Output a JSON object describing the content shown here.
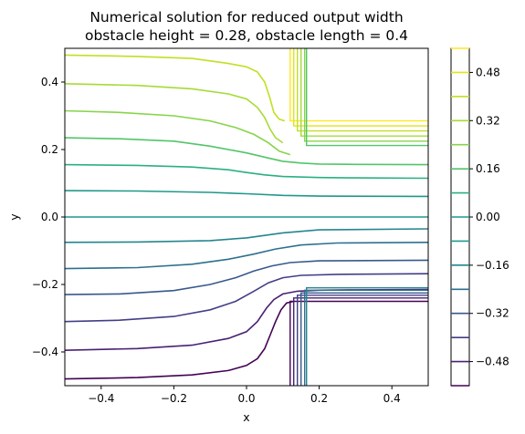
{
  "chart_data": {
    "type": "contour",
    "title_lines": [
      "Numerical solution for reduced output width",
      "obstacle height = 0.28, obstacle length = 0.4"
    ],
    "xlabel": "x",
    "ylabel": "y",
    "xlim": [
      -0.5,
      0.5
    ],
    "ylim": [
      -0.5,
      0.5
    ],
    "xticks": [
      -0.4,
      -0.2,
      0.0,
      0.2,
      0.4
    ],
    "xtick_labels": [
      "−0.4",
      "−0.2",
      "0.0",
      "0.2",
      "0.4"
    ],
    "yticks": [
      -0.4,
      -0.2,
      0.0,
      0.2,
      0.4
    ],
    "ytick_labels": [
      "−0.4",
      "−0.2",
      "0.0",
      "0.2",
      "0.4"
    ],
    "colormap": "viridis",
    "colorbar": {
      "range": [
        -0.56,
        0.56
      ],
      "ticks": [
        -0.48,
        -0.32,
        -0.16,
        0.0,
        0.16,
        0.32,
        0.48
      ],
      "tick_labels": [
        "−0.48",
        "−0.32",
        "−0.16",
        "0.00",
        "0.16",
        "0.32",
        "0.48"
      ]
    },
    "levels": [
      {
        "value": -0.56,
        "color": "#440154"
      },
      {
        "value": -0.48,
        "color": "#482173"
      },
      {
        "value": -0.4,
        "color": "#433e85"
      },
      {
        "value": -0.32,
        "color": "#38588c"
      },
      {
        "value": -0.24,
        "color": "#2d708e"
      },
      {
        "value": -0.16,
        "color": "#25858e"
      },
      {
        "value": -0.08,
        "color": "#1e9b8a"
      },
      {
        "value": 0.0,
        "color": "#1f988b"
      },
      {
        "value": 0.08,
        "color": "#2ab07f"
      },
      {
        "value": 0.16,
        "color": "#52c569"
      },
      {
        "value": 0.24,
        "color": "#86d549"
      },
      {
        "value": 0.32,
        "color": "#a5db36"
      },
      {
        "value": 0.4,
        "color": "#c2df23"
      },
      {
        "value": 0.48,
        "color": "#e2e418"
      },
      {
        "value": 0.56,
        "color": "#fde725"
      }
    ],
    "contours": [
      {
        "level": 0.48,
        "color": "#c2df23",
        "points": [
          [
            -0.5,
            0.48
          ],
          [
            -0.3,
            0.476
          ],
          [
            -0.15,
            0.47
          ],
          [
            -0.05,
            0.455
          ],
          [
            0.0,
            0.445
          ],
          [
            0.03,
            0.43
          ],
          [
            0.05,
            0.4
          ],
          [
            0.065,
            0.35
          ],
          [
            0.075,
            0.31
          ],
          [
            0.09,
            0.29
          ],
          [
            0.105,
            0.285
          ]
        ]
      },
      {
        "level": 0.4,
        "color": "#a5db36",
        "points": [
          [
            -0.5,
            0.395
          ],
          [
            -0.3,
            0.39
          ],
          [
            -0.15,
            0.38
          ],
          [
            -0.05,
            0.365
          ],
          [
            0.0,
            0.35
          ],
          [
            0.03,
            0.325
          ],
          [
            0.05,
            0.295
          ],
          [
            0.065,
            0.26
          ],
          [
            0.08,
            0.235
          ],
          [
            0.1,
            0.22
          ]
        ]
      },
      {
        "level": 0.32,
        "color": "#86d549",
        "points": [
          [
            -0.5,
            0.315
          ],
          [
            -0.35,
            0.31
          ],
          [
            -0.2,
            0.3
          ],
          [
            -0.1,
            0.285
          ],
          [
            -0.03,
            0.265
          ],
          [
            0.02,
            0.245
          ],
          [
            0.06,
            0.22
          ],
          [
            0.09,
            0.195
          ],
          [
            0.12,
            0.185
          ]
        ]
      },
      {
        "level": 0.24,
        "color": "#52c569",
        "points": [
          [
            -0.5,
            0.235
          ],
          [
            -0.35,
            0.232
          ],
          [
            -0.2,
            0.225
          ],
          [
            -0.1,
            0.21
          ],
          [
            0.0,
            0.19
          ],
          [
            0.06,
            0.175
          ],
          [
            0.1,
            0.165
          ],
          [
            0.15,
            0.16
          ],
          [
            0.2,
            0.157
          ],
          [
            0.3,
            0.156
          ],
          [
            0.5,
            0.155
          ]
        ]
      },
      {
        "level": 0.16,
        "color": "#2ab07f",
        "points": [
          [
            -0.5,
            0.155
          ],
          [
            -0.3,
            0.153
          ],
          [
            -0.15,
            0.148
          ],
          [
            -0.05,
            0.14
          ],
          [
            0.0,
            0.132
          ],
          [
            0.05,
            0.125
          ],
          [
            0.1,
            0.12
          ],
          [
            0.2,
            0.117
          ],
          [
            0.3,
            0.116
          ],
          [
            0.5,
            0.115
          ]
        ]
      },
      {
        "level": 0.08,
        "color": "#1f988b",
        "points": [
          [
            -0.5,
            0.078
          ],
          [
            -0.3,
            0.077
          ],
          [
            -0.1,
            0.073
          ],
          [
            0.0,
            0.069
          ],
          [
            0.1,
            0.064
          ],
          [
            0.2,
            0.062
          ],
          [
            0.5,
            0.061
          ]
        ]
      },
      {
        "level": 0.0,
        "color": "#1f988b",
        "points": [
          [
            -0.5,
            0.0
          ],
          [
            0.5,
            0.0
          ]
        ]
      },
      {
        "level": -0.08,
        "color": "#25858e",
        "points": [
          [
            -0.5,
            -0.075
          ],
          [
            -0.3,
            -0.074
          ],
          [
            -0.1,
            -0.07
          ],
          [
            0.0,
            -0.062
          ],
          [
            0.1,
            -0.047
          ],
          [
            0.2,
            -0.038
          ],
          [
            0.5,
            -0.035
          ]
        ]
      },
      {
        "level": -0.16,
        "color": "#2d708e",
        "points": [
          [
            -0.5,
            -0.153
          ],
          [
            -0.3,
            -0.15
          ],
          [
            -0.15,
            -0.14
          ],
          [
            -0.05,
            -0.125
          ],
          [
            0.02,
            -0.11
          ],
          [
            0.08,
            -0.095
          ],
          [
            0.15,
            -0.083
          ],
          [
            0.25,
            -0.077
          ],
          [
            0.5,
            -0.075
          ]
        ]
      },
      {
        "level": -0.24,
        "color": "#38588c",
        "points": [
          [
            -0.5,
            -0.23
          ],
          [
            -0.35,
            -0.228
          ],
          [
            -0.2,
            -0.218
          ],
          [
            -0.1,
            -0.2
          ],
          [
            -0.03,
            -0.18
          ],
          [
            0.02,
            -0.16
          ],
          [
            0.07,
            -0.145
          ],
          [
            0.12,
            -0.135
          ],
          [
            0.2,
            -0.13
          ],
          [
            0.5,
            -0.128
          ]
        ]
      },
      {
        "level": -0.32,
        "color": "#433e85",
        "points": [
          [
            -0.5,
            -0.31
          ],
          [
            -0.35,
            -0.306
          ],
          [
            -0.2,
            -0.295
          ],
          [
            -0.1,
            -0.275
          ],
          [
            -0.03,
            -0.25
          ],
          [
            0.02,
            -0.22
          ],
          [
            0.06,
            -0.195
          ],
          [
            0.1,
            -0.18
          ],
          [
            0.15,
            -0.173
          ],
          [
            0.25,
            -0.17
          ],
          [
            0.5,
            -0.168
          ]
        ]
      },
      {
        "level": -0.4,
        "color": "#482173",
        "points": [
          [
            -0.5,
            -0.395
          ],
          [
            -0.3,
            -0.39
          ],
          [
            -0.15,
            -0.38
          ],
          [
            -0.05,
            -0.36
          ],
          [
            0.0,
            -0.34
          ],
          [
            0.03,
            -0.31
          ],
          [
            0.055,
            -0.27
          ],
          [
            0.075,
            -0.245
          ],
          [
            0.1,
            -0.228
          ],
          [
            0.14,
            -0.22
          ],
          [
            0.2,
            -0.217
          ],
          [
            0.3,
            -0.216
          ],
          [
            0.5,
            -0.215
          ]
        ]
      },
      {
        "level": -0.48,
        "color": "#440154",
        "points": [
          [
            -0.5,
            -0.48
          ],
          [
            -0.3,
            -0.476
          ],
          [
            -0.15,
            -0.468
          ],
          [
            -0.05,
            -0.455
          ],
          [
            0.0,
            -0.44
          ],
          [
            0.03,
            -0.42
          ],
          [
            0.05,
            -0.39
          ],
          [
            0.065,
            -0.35
          ],
          [
            0.08,
            -0.31
          ],
          [
            0.095,
            -0.275
          ],
          [
            0.11,
            -0.255
          ],
          [
            0.13,
            -0.25
          ]
        ]
      }
    ],
    "obstacle_bands": {
      "top": {
        "x_start": [
          0.12,
          0.13,
          0.14,
          0.15,
          0.16,
          0.165
        ],
        "y_corner": [
          0.285,
          0.27,
          0.255,
          0.24,
          0.225,
          0.212
        ],
        "colors": [
          "#fde725",
          "#e2e418",
          "#c2df23",
          "#a5db36",
          "#86d549",
          "#52c569"
        ]
      },
      "bottom": {
        "x_start": [
          0.12,
          0.13,
          0.14,
          0.15,
          0.16,
          0.165
        ],
        "y_corner": [
          -0.25,
          -0.24,
          -0.232,
          -0.225,
          -0.217,
          -0.21
        ],
        "colors": [
          "#440154",
          "#482173",
          "#433e85",
          "#38588c",
          "#2d708e",
          "#25858e"
        ]
      }
    }
  }
}
